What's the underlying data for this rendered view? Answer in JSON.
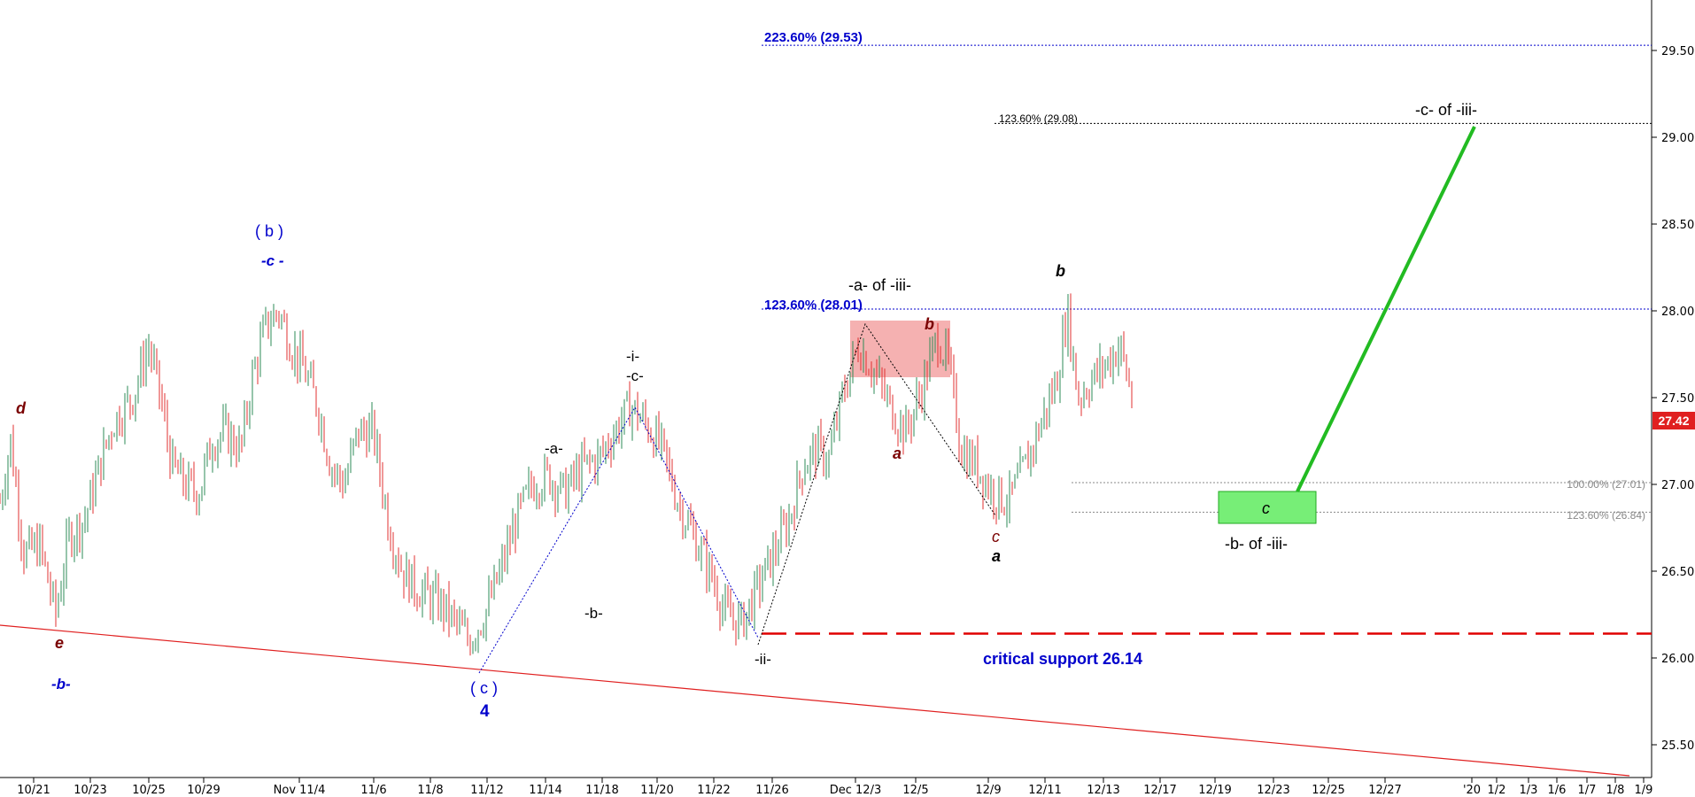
{
  "chart_data": {
    "type": "candlestick",
    "title": "",
    "xlabel": "",
    "ylabel": "",
    "ylim": [
      25.4,
      29.8
    ],
    "grid": false,
    "y_ticks": [
      "29.50",
      "29.00",
      "28.50",
      "28.00",
      "27.50",
      "27.00",
      "26.50",
      "26.00",
      "25.50"
    ],
    "x_ticks": [
      "10/21",
      "10/23",
      "10/25",
      "10/29",
      "Nov 11/4",
      "11/6",
      "11/8",
      "11/12",
      "11/14",
      "11/18",
      "11/20",
      "11/22",
      "11/26",
      "Dec 12/3",
      "12/5",
      "12/9",
      "12/11",
      "12/13",
      "12/17",
      "12/19",
      "12/23",
      "12/25",
      "12/27",
      "'20",
      "1/2",
      "1/3",
      "1/6",
      "1/7",
      "1/8",
      "1/9"
    ],
    "last_price": "27.42",
    "price_path": [
      [
        0,
        26.9
      ],
      [
        8,
        27.25
      ],
      [
        18,
        26.6
      ],
      [
        30,
        26.65
      ],
      [
        42,
        26.25
      ],
      [
        52,
        26.7
      ],
      [
        64,
        26.8
      ],
      [
        75,
        27.1
      ],
      [
        85,
        27.35
      ],
      [
        100,
        27.5
      ],
      [
        112,
        27.8
      ],
      [
        120,
        27.55
      ],
      [
        130,
        27.1
      ],
      [
        140,
        27.0
      ],
      [
        150,
        26.95
      ],
      [
        160,
        27.25
      ],
      [
        170,
        27.3
      ],
      [
        182,
        27.2
      ],
      [
        190,
        27.6
      ],
      [
        200,
        27.9
      ],
      [
        210,
        28.0
      ],
      [
        220,
        27.8
      ],
      [
        230,
        27.65
      ],
      [
        240,
        27.45
      ],
      [
        250,
        27.1
      ],
      [
        260,
        27.0
      ],
      [
        270,
        27.3
      ],
      [
        282,
        27.3
      ],
      [
        294,
        26.75
      ],
      [
        304,
        26.5
      ],
      [
        314,
        26.4
      ],
      [
        324,
        26.35
      ],
      [
        334,
        26.3
      ],
      [
        344,
        26.2
      ],
      [
        354,
        26.1
      ],
      [
        366,
        26.25
      ],
      [
        378,
        26.5
      ],
      [
        390,
        26.8
      ],
      [
        402,
        27.0
      ],
      [
        414,
        27.05
      ],
      [
        426,
        26.95
      ],
      [
        440,
        27.1
      ],
      [
        452,
        27.15
      ],
      [
        464,
        27.3
      ],
      [
        476,
        27.45
      ],
      [
        488,
        27.35
      ],
      [
        500,
        27.2
      ],
      [
        512,
        26.9
      ],
      [
        524,
        26.7
      ],
      [
        536,
        26.5
      ],
      [
        548,
        26.25
      ],
      [
        560,
        26.2
      ],
      [
        572,
        26.4
      ],
      [
        584,
        26.6
      ],
      [
        596,
        26.8
      ],
      [
        606,
        27.1
      ],
      [
        616,
        27.2
      ],
      [
        626,
        27.15
      ],
      [
        636,
        27.5
      ],
      [
        648,
        27.8
      ],
      [
        660,
        27.65
      ],
      [
        672,
        27.45
      ],
      [
        684,
        27.3
      ],
      [
        696,
        27.55
      ],
      [
        708,
        27.85
      ],
      [
        716,
        27.7
      ],
      [
        726,
        27.2
      ],
      [
        738,
        27.1
      ],
      [
        750,
        26.95
      ],
      [
        762,
        26.9
      ],
      [
        774,
        27.1
      ],
      [
        786,
        27.35
      ],
      [
        798,
        27.6
      ],
      [
        806,
        28.0
      ],
      [
        814,
        27.5
      ],
      [
        824,
        27.6
      ],
      [
        836,
        27.7
      ],
      [
        846,
        27.8
      ],
      [
        856,
        27.45
      ]
    ],
    "levels": [
      {
        "label": "223.60% (29.53)",
        "value": 29.53,
        "color": "#0000cc",
        "style": "dotted"
      },
      {
        "label": "123.60% (29.08)",
        "value": 29.08,
        "color": "#000000",
        "style": "dotted"
      },
      {
        "label": "123.60% (28.01)",
        "value": 28.01,
        "color": "#0000cc",
        "style": "dotted"
      },
      {
        "label": "100.00% (27.01)",
        "value": 27.01,
        "color": "#888888",
        "style": "dotted"
      },
      {
        "label": "123.60% (26.84)",
        "value": 26.84,
        "color": "#888888",
        "style": "dotted"
      },
      {
        "label": "critical support 26.14",
        "value": 26.14,
        "color": "#e00000",
        "style": "dashed"
      }
    ],
    "annotations": {
      "d": "d",
      "e": "e",
      "minus_b_left": "-b-",
      "paren_b": "( b )",
      "minus_c_top": "-c -",
      "paren_c": "( c )",
      "four": "4",
      "minus_a_mid": "-a-",
      "minus_b_mid": "-b-",
      "minus_i": "-i-",
      "minus_c_mid": "-c-",
      "minus_ii": "-ii-",
      "a_of_iii": "-a- of -iii-",
      "b_red": "b",
      "a_red": "a",
      "c_red": "c",
      "a_black": "a",
      "b_black": "b",
      "c_box": "c",
      "b_of_iii": "-b- of -iii-",
      "c_of_iii": "-c- of -iii-"
    },
    "colors": {
      "up": "#2e8b57",
      "down": "#e03030",
      "green_line": "#22bb22",
      "green_box": "#77ee77",
      "red_box": "#f4a8a8",
      "blue": "#0000cc",
      "dark_red": "#7a0000"
    }
  }
}
